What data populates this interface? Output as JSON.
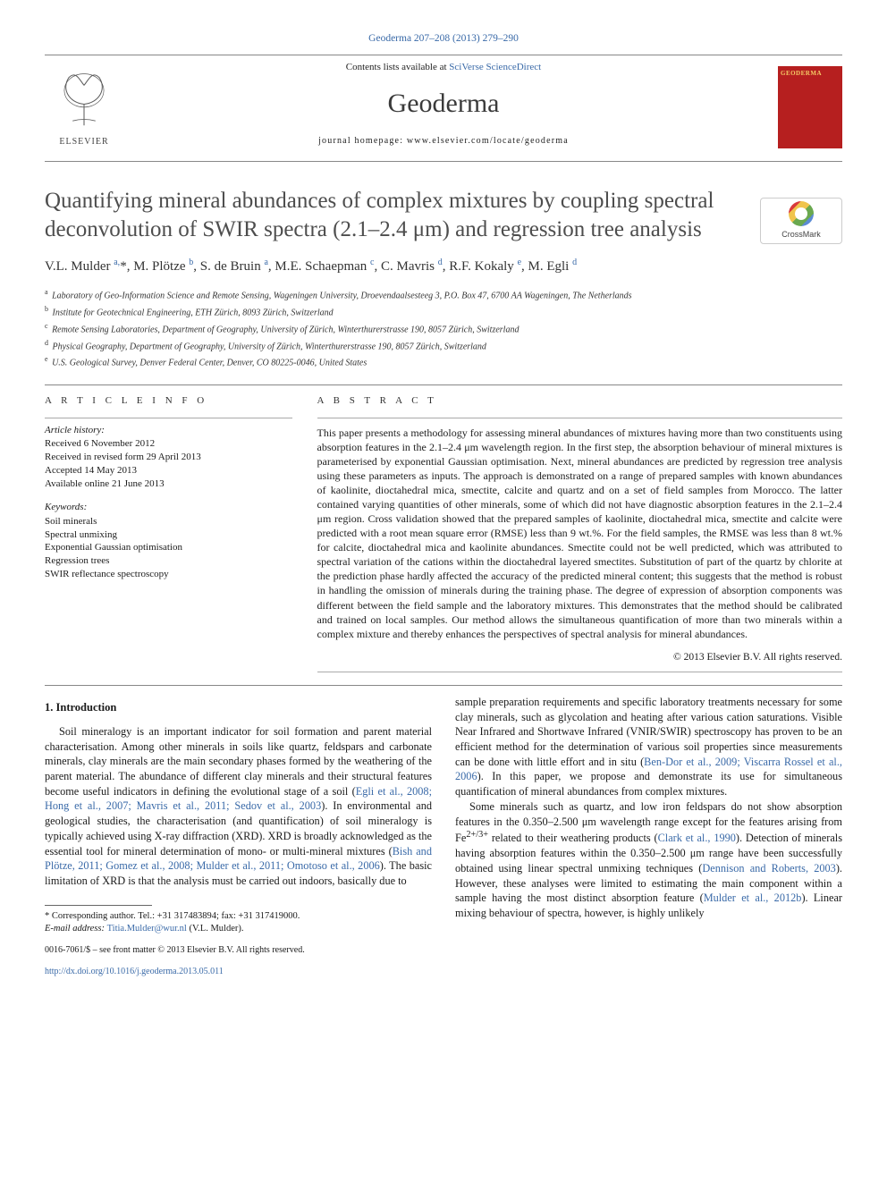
{
  "journal_ref": "Geoderma 207–208 (2013) 279–290",
  "masthead": {
    "contents_prefix": "Contents lists available at ",
    "contents_link": "SciVerse ScienceDirect",
    "journal": "Geoderma",
    "homepage_prefix": "journal homepage: ",
    "homepage": "www.elsevier.com/locate/geoderma",
    "publisher": "ELSEVIER",
    "cover_label": "GEODERMA"
  },
  "crossmark": "CrossMark",
  "title": "Quantifying mineral abundances of complex mixtures by coupling spectral deconvolution of SWIR spectra (2.1–2.4 μm) and regression tree analysis",
  "authors_html": "V.L. Mulder <sup>a,</sup><span class='star'>*</span>, M. Plötze <sup>b</sup>, S. de Bruin <sup>a</sup>, M.E. Schaepman <sup>c</sup>, C. Mavris <sup>d</sup>, R.F. Kokaly <sup>e</sup>, M. Egli <sup>d</sup>",
  "affiliations": [
    {
      "key": "a",
      "text": "Laboratory of Geo-Information Science and Remote Sensing, Wageningen University, Droevendaalsesteeg 3, P.O. Box 47, 6700 AA Wageningen, The Netherlands"
    },
    {
      "key": "b",
      "text": "Institute for Geotechnical Engineering, ETH Zürich, 8093 Zürich, Switzerland"
    },
    {
      "key": "c",
      "text": "Remote Sensing Laboratories, Department of Geography, University of Zürich, Winterthurerstrasse 190, 8057 Zürich, Switzerland"
    },
    {
      "key": "d",
      "text": "Physical Geography, Department of Geography, University of Zürich, Winterthurerstrasse 190, 8057 Zürich, Switzerland"
    },
    {
      "key": "e",
      "text": "U.S. Geological Survey, Denver Federal Center, Denver, CO 80225-0046, United States"
    }
  ],
  "artinfo_head": "A R T I C L E   I N F O",
  "abstract_head": "A B S T R A C T",
  "history_label": "Article history:",
  "history": [
    "Received 6 November 2012",
    "Received in revised form 29 April 2013",
    "Accepted 14 May 2013",
    "Available online 21 June 2013"
  ],
  "kw_label": "Keywords:",
  "keywords": [
    "Soil minerals",
    "Spectral unmixing",
    "Exponential Gaussian optimisation",
    "Regression trees",
    "SWIR reflectance spectroscopy"
  ],
  "abstract": "This paper presents a methodology for assessing mineral abundances of mixtures having more than two constituents using absorption features in the 2.1–2.4 μm wavelength region. In the first step, the absorption behaviour of mineral mixtures is parameterised by exponential Gaussian optimisation. Next, mineral abundances are predicted by regression tree analysis using these parameters as inputs. The approach is demonstrated on a range of prepared samples with known abundances of kaolinite, dioctahedral mica, smectite, calcite and quartz and on a set of field samples from Morocco. The latter contained varying quantities of other minerals, some of which did not have diagnostic absorption features in the 2.1–2.4 μm region. Cross validation showed that the prepared samples of kaolinite, dioctahedral mica, smectite and calcite were predicted with a root mean square error (RMSE) less than 9 wt.%. For the field samples, the RMSE was less than 8 wt.% for calcite, dioctahedral mica and kaolinite abundances. Smectite could not be well predicted, which was attributed to spectral variation of the cations within the dioctahedral layered smectites. Substitution of part of the quartz by chlorite at the prediction phase hardly affected the accuracy of the predicted mineral content; this suggests that the method is robust in handling the omission of minerals during the training phase. The degree of expression of absorption components was different between the field sample and the laboratory mixtures. This demonstrates that the method should be calibrated and trained on local samples. Our method allows the simultaneous quantification of more than two minerals within a complex mixture and thereby enhances the perspectives of spectral analysis for mineral abundances.",
  "copyright_abs": "© 2013 Elsevier B.V. All rights reserved.",
  "intro_head": "1. Introduction",
  "col_left_p1_a": "Soil mineralogy is an important indicator for soil formation and parent material characterisation. Among other minerals in soils like quartz, feldspars and carbonate minerals, clay minerals are the main secondary phases formed by the weathering of the parent material. The abundance of different clay minerals and their structural features become useful indicators in defining the evolutional stage of a soil (",
  "col_left_c1": "Egli et al., 2008; Hong et al., 2007; Mavris et al., 2011; Sedov et al., 2003",
  "col_left_p1_b": "). In environmental and geological studies, the characterisation (and quantification) of soil mineralogy is typically achieved using X-ray diffraction (XRD). XRD is broadly acknowledged as the essential tool for mineral determination of mono- or multi-mineral mixtures (",
  "col_left_c2": "Bish and Plötze, 2011; Gomez et al., 2008; Mulder et al., 2011; Omotoso et al., 2006",
  "col_left_p1_c": "). The basic limitation of XRD is that the analysis must be carried out indoors, basically due to",
  "col_right_p1_a": "sample preparation requirements and specific laboratory treatments necessary for some clay minerals, such as glycolation and heating after various cation saturations. Visible Near Infrared and Shortwave Infrared (VNIR/SWIR) spectroscopy has proven to be an efficient method for the determination of various soil properties since measurements can be done with little effort and in situ (",
  "col_right_c1": "Ben-Dor et al., 2009; Viscarra Rossel et al., 2006",
  "col_right_p1_b": "). In this paper, we propose and demonstrate its use for simultaneous quantification of mineral abundances from complex mixtures.",
  "col_right_p2_a": "Some minerals such as quartz, and low iron feldspars do not show absorption features in the 0.350–2.500 μm wavelength range except for the features arising from Fe",
  "col_right_sup": "2+/3+",
  "col_right_p2_b": " related to their weathering products (",
  "col_right_c2": "Clark et al., 1990",
  "col_right_p2_c": "). Detection of minerals having absorption features within the 0.350–2.500 μm range have been successfully obtained using linear spectral unmixing techniques (",
  "col_right_c3": "Dennison and Roberts, 2003",
  "col_right_p2_d": "). However, these analyses were limited to estimating the main component within a sample having the most distinct absorption feature (",
  "col_right_c4": "Mulder et al., 2012b",
  "col_right_p2_e": "). Linear mixing behaviour of spectra, however, is highly unlikely",
  "footnote": {
    "corr": "* Corresponding author. Tel.: +31 317483894; fax: +31 317419000.",
    "email_label": "E-mail address: ",
    "email": "Titia.Mulder@wur.nl",
    "email_who": " (V.L. Mulder)."
  },
  "cc": {
    "line1": "0016-7061/$ – see front matter © 2013 Elsevier B.V. All rights reserved.",
    "doi": "http://dx.doi.org/10.1016/j.geoderma.2013.05.011"
  },
  "colors": {
    "link": "#3a6aa8",
    "cover": "#b61f1f",
    "cover_text": "#f5cc66"
  }
}
